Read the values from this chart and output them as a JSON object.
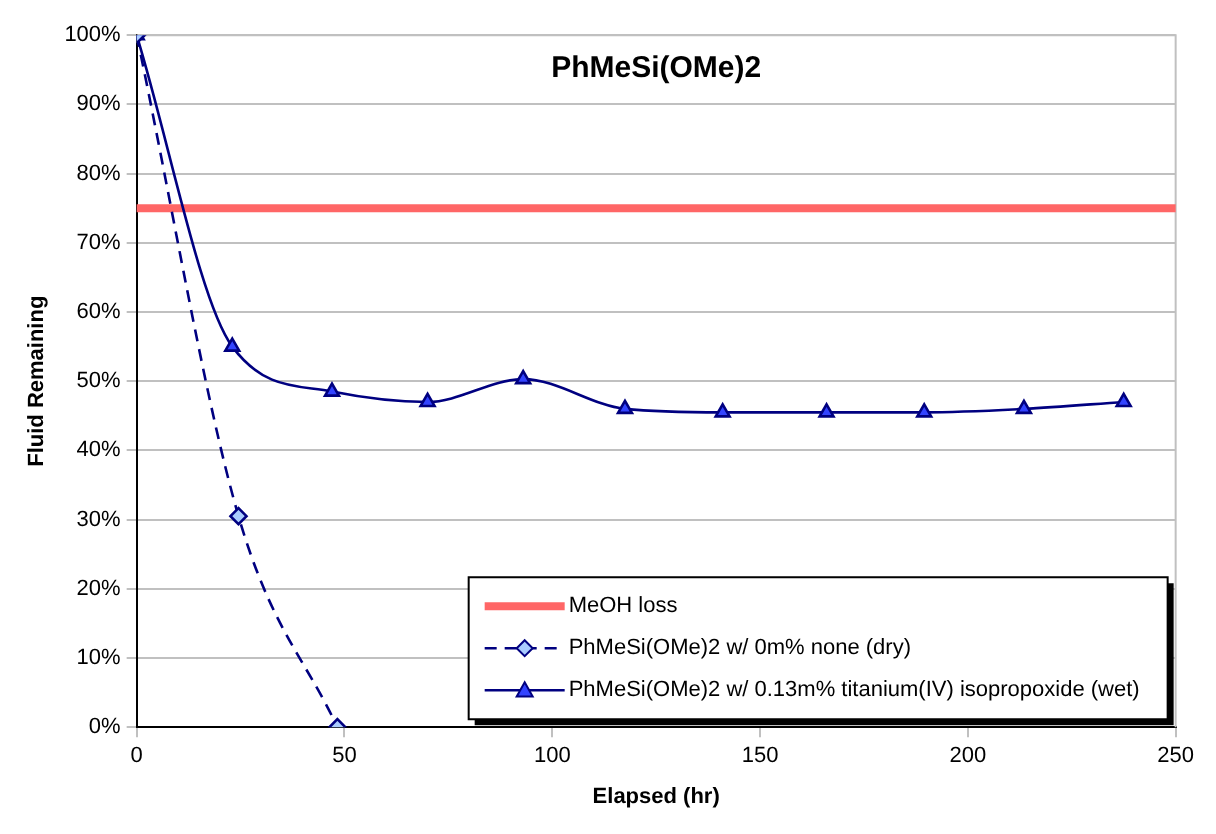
{
  "chart_data": {
    "type": "line",
    "title": "PhMeSi(OMe)2",
    "xlabel": "Elapsed (hr)",
    "ylabel": "Fluid Remaining",
    "xlim": [
      0,
      250
    ],
    "xticks": [
      0,
      50,
      100,
      150,
      200,
      250
    ],
    "ylim": [
      0,
      100
    ],
    "yticks": [
      {
        "value": 0,
        "label": "0%"
      },
      {
        "value": 10,
        "label": "10%"
      },
      {
        "value": 20,
        "label": "20%"
      },
      {
        "value": 30,
        "label": "30%"
      },
      {
        "value": 40,
        "label": "40%"
      },
      {
        "value": 50,
        "label": "50%"
      },
      {
        "value": 60,
        "label": "60%"
      },
      {
        "value": 70,
        "label": "70%"
      },
      {
        "value": 80,
        "label": "80%"
      },
      {
        "value": 90,
        "label": "90%"
      },
      {
        "value": 100,
        "label": "100%"
      }
    ],
    "grid": "y",
    "legend": "bottom right",
    "ref_lines": [
      {
        "axis": "y",
        "value": 75,
        "label": "MeOH loss",
        "color": "#ff6666"
      }
    ],
    "series": [
      {
        "name": "PhMeSi(OMe)2 w/ 0m% none (dry)",
        "color": "#000080",
        "marker": "diamond",
        "line_style": "dashed",
        "x": [
          0,
          24.5,
          48.3
        ],
        "values": [
          100,
          30.5,
          0
        ]
      },
      {
        "name": "PhMeSi(OMe)2 w/ 0.13m% titanium(IV) isopropoxide (wet)",
        "color": "#000080",
        "marker": "triangle",
        "line_style": "solid",
        "x": [
          0,
          23,
          47,
          70,
          93,
          117.5,
          141,
          166,
          189.5,
          213.5,
          237.5
        ],
        "values": [
          100,
          55,
          48.5,
          47,
          50.3,
          46,
          45.5,
          45.5,
          45.5,
          46,
          47
        ]
      }
    ]
  }
}
